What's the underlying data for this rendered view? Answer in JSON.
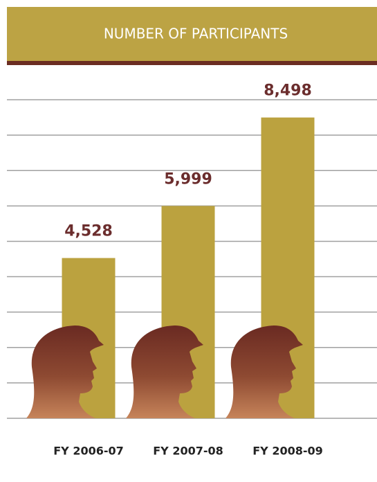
{
  "chart_data": {
    "type": "bar",
    "title": "NUMBER OF PARTICIPANTS",
    "categories": [
      "FY 2006-07",
      "FY 2007-08",
      "FY 2008-09"
    ],
    "values": [
      4528,
      5999,
      8498
    ],
    "value_labels": [
      "4,528",
      "5,999",
      "8,498"
    ],
    "color": "#bba23f",
    "ylim": [
      0,
      9000
    ],
    "yticks": [
      0,
      1000,
      2000,
      3000,
      4000,
      5000,
      6000,
      7000,
      8000,
      9000
    ],
    "grid": true
  }
}
